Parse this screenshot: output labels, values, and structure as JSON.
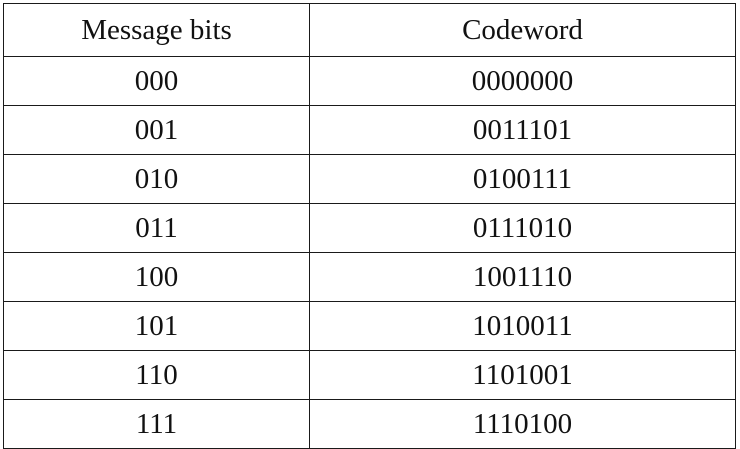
{
  "table": {
    "headers": [
      "Message bits",
      "Codeword"
    ],
    "rows": [
      [
        "000",
        "0000000"
      ],
      [
        "001",
        "0011101"
      ],
      [
        "010",
        "0100111"
      ],
      [
        "011",
        "0111010"
      ],
      [
        "100",
        "1001110"
      ],
      [
        "101",
        "1010011"
      ],
      [
        "110",
        "1101001"
      ],
      [
        "111",
        "1110100"
      ]
    ]
  }
}
